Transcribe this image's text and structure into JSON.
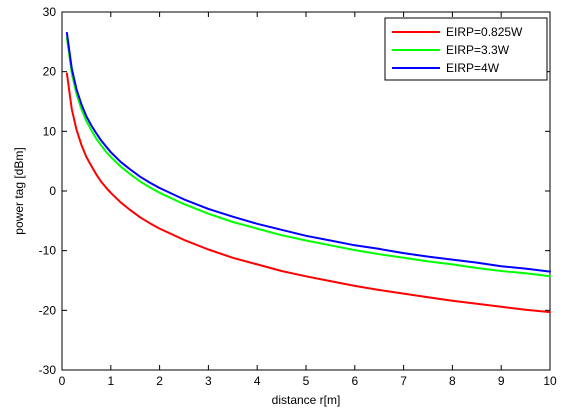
{
  "chart_data": {
    "type": "line",
    "xlabel": "distance r[m]",
    "ylabel": "power tag [dBm]",
    "xlim": [
      0,
      10
    ],
    "ylim": [
      -30,
      30
    ],
    "xticks": [
      0,
      1,
      2,
      3,
      4,
      5,
      6,
      7,
      8,
      9,
      10
    ],
    "yticks": [
      30,
      20,
      10,
      0,
      -10,
      -20,
      -30
    ],
    "grid": false,
    "legend_position": "top-right",
    "series": [
      {
        "name": "EIRP=0.825W",
        "color": "#ff0000",
        "x": [
          0.1,
          0.2,
          0.3,
          0.4,
          0.5,
          0.6,
          0.7,
          0.8,
          0.9,
          1.0,
          1.2,
          1.4,
          1.6,
          1.8,
          2.0,
          2.5,
          3.0,
          3.5,
          4.0,
          4.5,
          5.0,
          5.5,
          6.0,
          6.5,
          7.0,
          7.5,
          8.0,
          8.5,
          9.0,
          9.5,
          10.0
        ],
        "values": [
          19.7,
          13.7,
          10.2,
          7.7,
          5.7,
          4.2,
          2.8,
          1.6,
          0.6,
          -0.3,
          -1.9,
          -3.2,
          -4.4,
          -5.4,
          -6.3,
          -8.2,
          -9.8,
          -11.2,
          -12.3,
          -13.4,
          -14.3,
          -15.1,
          -15.9,
          -16.6,
          -17.2,
          -17.8,
          -18.4,
          -18.9,
          -19.4,
          -19.9,
          -20.3
        ]
      },
      {
        "name": "EIRP=3.3W",
        "color": "#00ff00",
        "x": [
          0.1,
          0.2,
          0.3,
          0.4,
          0.5,
          0.6,
          0.7,
          0.8,
          0.9,
          1.0,
          1.2,
          1.4,
          1.6,
          1.8,
          2.0,
          2.5,
          3.0,
          3.5,
          4.0,
          4.5,
          5.0,
          5.5,
          6.0,
          6.5,
          7.0,
          7.5,
          8.0,
          8.5,
          9.0,
          9.5,
          10.0
        ],
        "values": [
          25.7,
          19.7,
          16.2,
          13.7,
          11.7,
          10.2,
          8.8,
          7.7,
          6.6,
          5.7,
          4.1,
          2.8,
          1.6,
          0.6,
          -0.3,
          -2.2,
          -3.8,
          -5.2,
          -6.3,
          -7.4,
          -8.3,
          -9.1,
          -9.9,
          -10.6,
          -11.2,
          -11.8,
          -12.3,
          -12.9,
          -13.4,
          -13.8,
          -14.3
        ]
      },
      {
        "name": "EIRP=4W",
        "color": "#0000ff",
        "x": [
          0.1,
          0.2,
          0.3,
          0.4,
          0.5,
          0.6,
          0.7,
          0.8,
          0.9,
          1.0,
          1.2,
          1.4,
          1.6,
          1.8,
          2.0,
          2.5,
          3.0,
          3.5,
          4.0,
          4.5,
          5.0,
          5.5,
          6.0,
          6.5,
          7.0,
          7.5,
          8.0,
          8.5,
          9.0,
          9.5,
          10.0
        ],
        "values": [
          26.5,
          20.5,
          17.0,
          14.5,
          12.5,
          11.0,
          9.7,
          8.5,
          7.5,
          6.5,
          4.9,
          3.6,
          2.4,
          1.4,
          0.5,
          -1.4,
          -3.0,
          -4.3,
          -5.5,
          -6.5,
          -7.5,
          -8.3,
          -9.1,
          -9.7,
          -10.4,
          -11.0,
          -11.5,
          -12.0,
          -12.6,
          -13.0,
          -13.5
        ]
      }
    ]
  }
}
